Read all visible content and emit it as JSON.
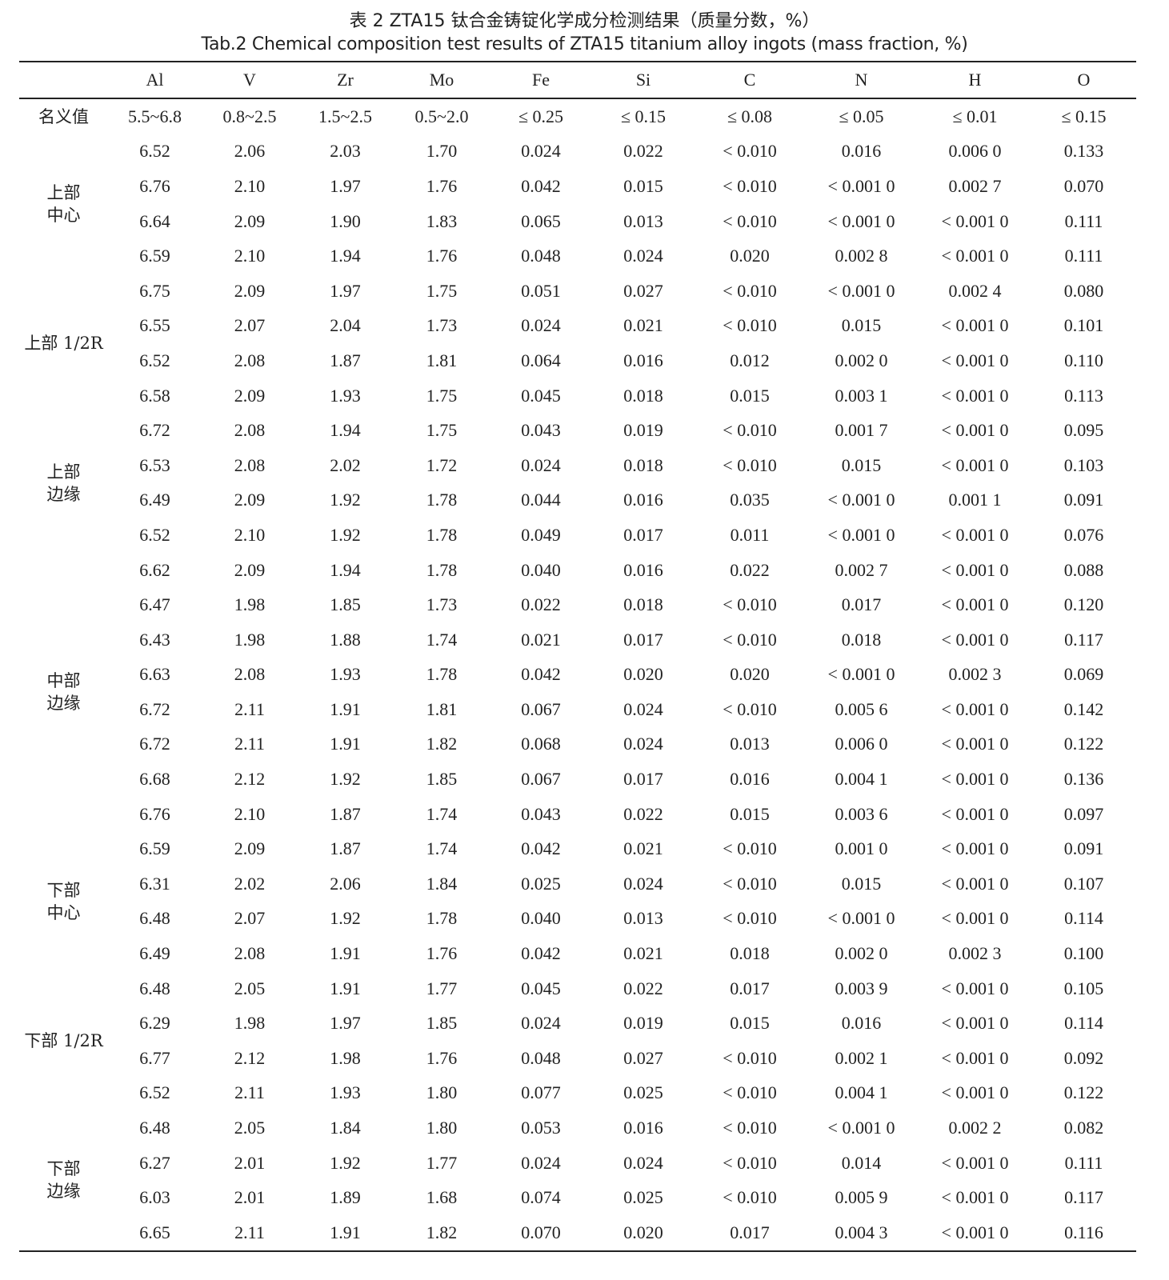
{
  "title_cn": "表 2 ZTA15 钛合金铸锭化学成分检测结果（质量分数，%）",
  "title_en": "Tab.2 Chemical composition test results of ZTA15 titanium alloy ingots (mass fraction, %)",
  "columns": [
    "",
    "Al",
    "V",
    "Zr",
    "Mo",
    "Fe",
    "Si",
    "C",
    "N",
    "H",
    "O"
  ],
  "nominal": {
    "label": "名义值",
    "values": [
      "5.5~6.8",
      "0.8~2.5",
      "1.5~2.5",
      "0.5~2.0",
      "≤ 0.25",
      "≤ 0.15",
      "≤ 0.08",
      "≤ 0.05",
      "≤ 0.01",
      "≤ 0.15"
    ]
  },
  "groups": [
    {
      "label": "上部\n中心",
      "rows": [
        [
          "6.52",
          "2.06",
          "2.03",
          "1.70",
          "0.024",
          "0.022",
          "< 0.010",
          "0.016",
          "0.006 0",
          "0.133"
        ],
        [
          "6.76",
          "2.10",
          "1.97",
          "1.76",
          "0.042",
          "0.015",
          "< 0.010",
          "< 0.001 0",
          "0.002 7",
          "0.070"
        ],
        [
          "6.64",
          "2.09",
          "1.90",
          "1.83",
          "0.065",
          "0.013",
          "< 0.010",
          "< 0.001 0",
          "< 0.001 0",
          "0.111"
        ],
        [
          "6.59",
          "2.10",
          "1.94",
          "1.76",
          "0.048",
          "0.024",
          "0.020",
          "0.002 8",
          "< 0.001 0",
          "0.111"
        ]
      ]
    },
    {
      "label": "上部 1/2R",
      "rows": [
        [
          "6.75",
          "2.09",
          "1.97",
          "1.75",
          "0.051",
          "0.027",
          "< 0.010",
          "< 0.001 0",
          "0.002 4",
          "0.080"
        ],
        [
          "6.55",
          "2.07",
          "2.04",
          "1.73",
          "0.024",
          "0.021",
          "< 0.010",
          "0.015",
          "< 0.001 0",
          "0.101"
        ],
        [
          "6.52",
          "2.08",
          "1.87",
          "1.81",
          "0.064",
          "0.016",
          "0.012",
          "0.002 0",
          "< 0.001 0",
          "0.110"
        ],
        [
          "6.58",
          "2.09",
          "1.93",
          "1.75",
          "0.045",
          "0.018",
          "0.015",
          "0.003 1",
          "< 0.001 0",
          "0.113"
        ]
      ]
    },
    {
      "label": "上部\n边缘",
      "rows": [
        [
          "6.72",
          "2.08",
          "1.94",
          "1.75",
          "0.043",
          "0.019",
          "< 0.010",
          "0.001 7",
          "< 0.001 0",
          "0.095"
        ],
        [
          "6.53",
          "2.08",
          "2.02",
          "1.72",
          "0.024",
          "0.018",
          "< 0.010",
          "0.015",
          "< 0.001 0",
          "0.103"
        ],
        [
          "6.49",
          "2.09",
          "1.92",
          "1.78",
          "0.044",
          "0.016",
          "0.035",
          "< 0.001 0",
          "0.001 1",
          "0.091"
        ],
        [
          "6.52",
          "2.10",
          "1.92",
          "1.78",
          "0.049",
          "0.017",
          "0.011",
          "< 0.001 0",
          "< 0.001 0",
          "0.076"
        ]
      ]
    },
    {
      "label": "中部\n边缘",
      "rows": [
        [
          "6.62",
          "2.09",
          "1.94",
          "1.78",
          "0.040",
          "0.016",
          "0.022",
          "0.002 7",
          "< 0.001 0",
          "0.088"
        ],
        [
          "6.47",
          "1.98",
          "1.85",
          "1.73",
          "0.022",
          "0.018",
          "< 0.010",
          "0.017",
          "< 0.001 0",
          "0.120"
        ],
        [
          "6.43",
          "1.98",
          "1.88",
          "1.74",
          "0.021",
          "0.017",
          "< 0.010",
          "0.018",
          "< 0.001 0",
          "0.117"
        ],
        [
          "6.63",
          "2.08",
          "1.93",
          "1.78",
          "0.042",
          "0.020",
          "0.020",
          "< 0.001 0",
          "0.002 3",
          "0.069"
        ],
        [
          "6.72",
          "2.11",
          "1.91",
          "1.81",
          "0.067",
          "0.024",
          "< 0.010",
          "0.005 6",
          "< 0.001 0",
          "0.142"
        ],
        [
          "6.72",
          "2.11",
          "1.91",
          "1.82",
          "0.068",
          "0.024",
          "0.013",
          "0.006 0",
          "< 0.001 0",
          "0.122"
        ],
        [
          "6.68",
          "2.12",
          "1.92",
          "1.85",
          "0.067",
          "0.017",
          "0.016",
          "0.004 1",
          "< 0.001 0",
          "0.136"
        ],
        [
          "6.76",
          "2.10",
          "1.87",
          "1.74",
          "0.043",
          "0.022",
          "0.015",
          "0.003 6",
          "< 0.001 0",
          "0.097"
        ]
      ]
    },
    {
      "label": "下部\n中心",
      "rows": [
        [
          "6.59",
          "2.09",
          "1.87",
          "1.74",
          "0.042",
          "0.021",
          "< 0.010",
          "0.001 0",
          "< 0.001 0",
          "0.091"
        ],
        [
          "6.31",
          "2.02",
          "2.06",
          "1.84",
          "0.025",
          "0.024",
          "< 0.010",
          "0.015",
          "< 0.001 0",
          "0.107"
        ],
        [
          "6.48",
          "2.07",
          "1.92",
          "1.78",
          "0.040",
          "0.013",
          "< 0.010",
          "< 0.001 0",
          "< 0.001 0",
          "0.114"
        ],
        [
          "6.49",
          "2.08",
          "1.91",
          "1.76",
          "0.042",
          "0.021",
          "0.018",
          "0.002 0",
          "0.002 3",
          "0.100"
        ]
      ]
    },
    {
      "label": "下部 1/2R",
      "rows": [
        [
          "6.48",
          "2.05",
          "1.91",
          "1.77",
          "0.045",
          "0.022",
          "0.017",
          "0.003 9",
          "< 0.001 0",
          "0.105"
        ],
        [
          "6.29",
          "1.98",
          "1.97",
          "1.85",
          "0.024",
          "0.019",
          "0.015",
          "0.016",
          "< 0.001 0",
          "0.114"
        ],
        [
          "6.77",
          "2.12",
          "1.98",
          "1.76",
          "0.048",
          "0.027",
          "< 0.010",
          "0.002 1",
          "< 0.001 0",
          "0.092"
        ],
        [
          "6.52",
          "2.11",
          "1.93",
          "1.80",
          "0.077",
          "0.025",
          "< 0.010",
          "0.004 1",
          "< 0.001 0",
          "0.122"
        ]
      ]
    },
    {
      "label": "下部\n边缘",
      "rows": [
        [
          "6.48",
          "2.05",
          "1.84",
          "1.80",
          "0.053",
          "0.016",
          "< 0.010",
          "< 0.001 0",
          "0.002 2",
          "0.082"
        ],
        [
          "6.27",
          "2.01",
          "1.92",
          "1.77",
          "0.024",
          "0.024",
          "< 0.010",
          "0.014",
          "< 0.001 0",
          "0.111"
        ],
        [
          "6.03",
          "2.01",
          "1.89",
          "1.68",
          "0.074",
          "0.025",
          "< 0.010",
          "0.005 9",
          "< 0.001 0",
          "0.117"
        ],
        [
          "6.65",
          "2.11",
          "1.91",
          "1.82",
          "0.070",
          "0.020",
          "0.017",
          "0.004 3",
          "< 0.001 0",
          "0.116"
        ]
      ]
    }
  ]
}
